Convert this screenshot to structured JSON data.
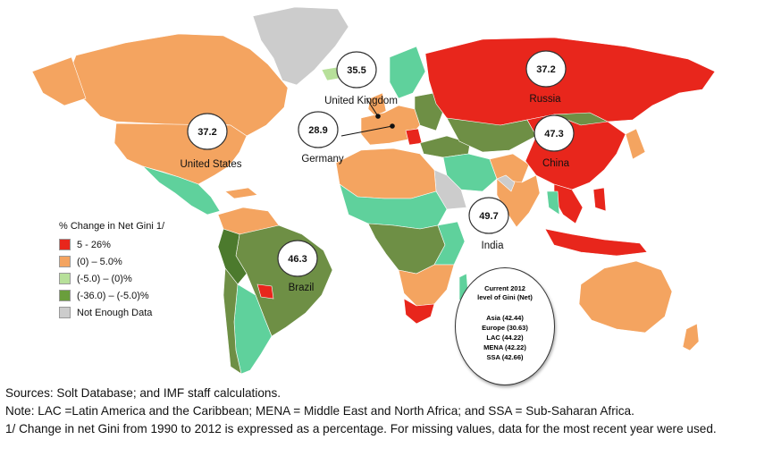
{
  "legend": {
    "title": "% Change in Net Gini 1/",
    "items": [
      {
        "label": "5 - 26%",
        "color": "#e8261c"
      },
      {
        "label": "(0) – 5.0%",
        "color": "#f4a460"
      },
      {
        "label": "(-5.0) – (0)%",
        "color": "#b7e09a"
      },
      {
        "label": "(-36.0) – (-5.0)%",
        "color": "#6a9e3c"
      },
      {
        "label": "Not Enough Data",
        "color": "#cccccc"
      }
    ]
  },
  "colors": {
    "red": "#e8261c",
    "orange": "#f4a460",
    "light_green": "#b7e09a",
    "teal": "#5fd19c",
    "olive": "#6e8f45",
    "dark_green": "#4c7a2d",
    "gray": "#cccccc"
  },
  "countries": [
    {
      "name": "United States",
      "gini": "37.2"
    },
    {
      "name": "United Kingdom",
      "gini": "35.5"
    },
    {
      "name": "Germany",
      "gini": "28.9"
    },
    {
      "name": "Russia",
      "gini": "37.2"
    },
    {
      "name": "China",
      "gini": "47.3"
    },
    {
      "name": "India",
      "gini": "49.7"
    },
    {
      "name": "Brazil",
      "gini": "46.3"
    }
  ],
  "regional": {
    "title_line1": "Current 2012",
    "title_line2": "level of Gini (Net)",
    "items": [
      "Asia (42.44)",
      "Europe (30.63)",
      "LAC (44.22)",
      "MENA (42.22)",
      "SSA (42.66)"
    ]
  },
  "notes": [
    "Sources: Solt Database; and IMF staff calculations.",
    "Note: LAC =Latin America and the Caribbean; MENA = Middle East and North Africa; and SSA = Sub-Saharan Africa.",
    "1/ Change in net Gini from 1990 to 2012 is expressed as a percentage. For missing values, data for the most recent year were used."
  ]
}
